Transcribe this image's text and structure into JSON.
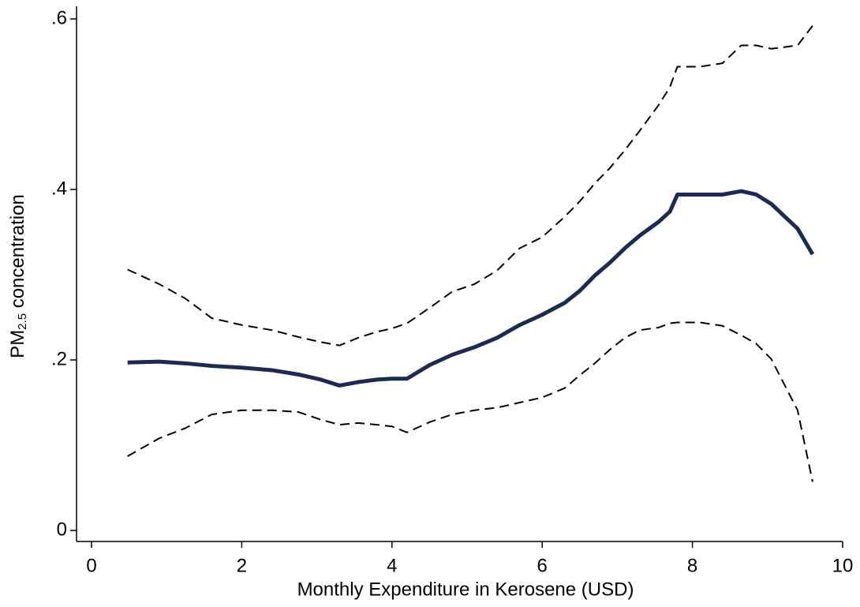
{
  "chart_data": {
    "type": "line",
    "x_label": "Monthly Expenditure in Kerosene (USD)",
    "y_label": {
      "base": "PM",
      "subscript": "2.5",
      "rest": " concentration"
    },
    "x": [
      0.48,
      0.9,
      1.25,
      1.6,
      2.0,
      2.4,
      2.75,
      3.05,
      3.3,
      3.55,
      3.8,
      4.0,
      4.2,
      4.5,
      4.8,
      5.1,
      5.4,
      5.7,
      6.0,
      6.3,
      6.5,
      6.7,
      6.9,
      7.1,
      7.3,
      7.55,
      7.7,
      7.8,
      8.1,
      8.4,
      8.65,
      8.85,
      9.05,
      9.4,
      9.6
    ],
    "series": [
      {
        "color": "#1c2b52",
        "dashed": false,
        "width": 5,
        "values": [
          0.197,
          0.198,
          0.196,
          0.193,
          0.191,
          0.188,
          0.183,
          0.177,
          0.17,
          0.174,
          0.177,
          0.178,
          0.178,
          0.194,
          0.206,
          0.215,
          0.226,
          0.241,
          0.253,
          0.267,
          0.281,
          0.299,
          0.314,
          0.331,
          0.346,
          0.362,
          0.374,
          0.394,
          0.394,
          0.394,
          0.398,
          0.394,
          0.383,
          0.354,
          0.324
        ]
      },
      {
        "color": "#000000",
        "dashed": true,
        "width": 2,
        "values": [
          0.306,
          0.289,
          0.272,
          0.249,
          0.241,
          0.235,
          0.227,
          0.221,
          0.217,
          0.226,
          0.233,
          0.237,
          0.243,
          0.261,
          0.28,
          0.289,
          0.305,
          0.331,
          0.344,
          0.368,
          0.386,
          0.407,
          0.425,
          0.446,
          0.469,
          0.499,
          0.52,
          0.544,
          0.544,
          0.548,
          0.569,
          0.569,
          0.565,
          0.569,
          0.592
        ]
      },
      {
        "color": "#000000",
        "dashed": true,
        "width": 2,
        "values": [
          0.087,
          0.108,
          0.12,
          0.136,
          0.141,
          0.141,
          0.139,
          0.13,
          0.124,
          0.126,
          0.124,
          0.122,
          0.115,
          0.127,
          0.136,
          0.141,
          0.144,
          0.15,
          0.156,
          0.167,
          0.182,
          0.196,
          0.212,
          0.226,
          0.235,
          0.238,
          0.243,
          0.244,
          0.244,
          0.24,
          0.229,
          0.219,
          0.201,
          0.141,
          0.057
        ]
      }
    ],
    "xlim": [
      0,
      10
    ],
    "xticks": [
      0,
      2,
      4,
      6,
      8,
      10
    ],
    "ylim": [
      0,
      0.6
    ],
    "yticks": [
      0,
      {
        "value": 0.2,
        "label": ".2"
      },
      {
        "value": 0.4,
        "label": ".4"
      },
      {
        "value": 0.6,
        "label": ".6"
      }
    ],
    "grid": false
  }
}
